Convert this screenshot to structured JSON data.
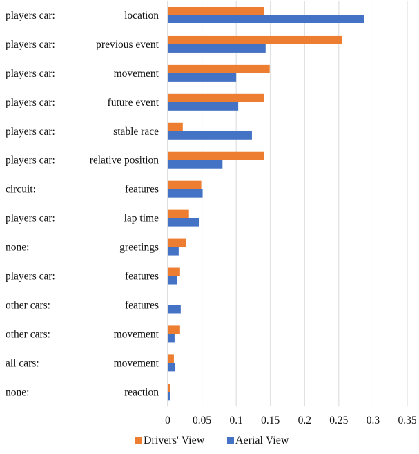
{
  "chart_data": {
    "type": "bar",
    "orientation": "horizontal",
    "categories": [
      {
        "group": "players car:",
        "label": "location"
      },
      {
        "group": "players car:",
        "label": "previous event"
      },
      {
        "group": "players car:",
        "label": "movement"
      },
      {
        "group": "players car:",
        "label": "future event"
      },
      {
        "group": "players car:",
        "label": "stable race"
      },
      {
        "group": "players car:",
        "label": "relative position"
      },
      {
        "group": "circuit:",
        "label": "features"
      },
      {
        "group": "players car:",
        "label": "lap time"
      },
      {
        "group": "none:",
        "label": "greetings"
      },
      {
        "group": "players car:",
        "label": "features"
      },
      {
        "group": "other cars:",
        "label": "features"
      },
      {
        "group": "other cars:",
        "label": "movement"
      },
      {
        "group": "all cars:",
        "label": "movement"
      },
      {
        "group": "none:",
        "label": "reaction"
      }
    ],
    "series": [
      {
        "name": "Drivers' View",
        "color": "#ED7D31",
        "values": [
          0.141,
          0.255,
          0.149,
          0.141,
          0.022,
          0.141,
          0.049,
          0.031,
          0.027,
          0.018,
          0.0,
          0.018,
          0.009,
          0.004
        ]
      },
      {
        "name": "Aerial View",
        "color": "#4472C4",
        "values": [
          0.287,
          0.143,
          0.1,
          0.103,
          0.123,
          0.08,
          0.051,
          0.046,
          0.016,
          0.014,
          0.019,
          0.01,
          0.011,
          0.003
        ]
      }
    ],
    "xlim": [
      0,
      0.35
    ],
    "xticks": [
      "0",
      "0.05",
      "0.1",
      "0.15",
      "0.2",
      "0.25",
      "0.3",
      "0.35"
    ],
    "grid": true,
    "legend_position": "bottom-center",
    "title": "",
    "xlabel": "",
    "ylabel": ""
  }
}
